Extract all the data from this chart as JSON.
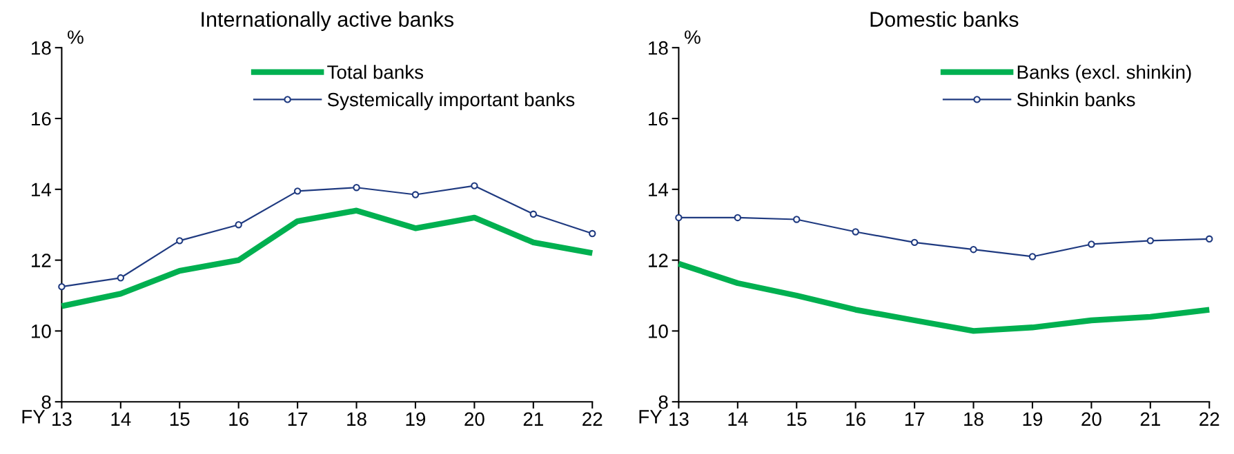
{
  "chart_data": [
    {
      "type": "line",
      "title": "Internationally active banks",
      "xlabel": "FY",
      "ylabel": "%",
      "categories": [
        "13",
        "14",
        "15",
        "16",
        "17",
        "18",
        "19",
        "20",
        "21",
        "22"
      ],
      "ylim": [
        8,
        18
      ],
      "yticks": [
        8,
        10,
        12,
        14,
        16,
        18
      ],
      "grid": false,
      "legend": "top right",
      "series": [
        {
          "name": "Total banks",
          "color": "#00b050",
          "marker": "none",
          "values": [
            10.7,
            11.05,
            11.7,
            12.0,
            13.1,
            13.4,
            12.9,
            13.2,
            12.5,
            12.2
          ]
        },
        {
          "name": "Systemically important banks",
          "color": "#1f3a80",
          "marker": "circle",
          "values": [
            11.25,
            11.5,
            12.55,
            13.0,
            13.95,
            14.05,
            13.85,
            14.1,
            13.3,
            12.75
          ]
        }
      ]
    },
    {
      "type": "line",
      "title": "Domestic banks",
      "xlabel": "FY",
      "ylabel": "%",
      "categories": [
        "13",
        "14",
        "15",
        "16",
        "17",
        "18",
        "19",
        "20",
        "21",
        "22"
      ],
      "ylim": [
        8,
        18
      ],
      "yticks": [
        8,
        10,
        12,
        14,
        16,
        18
      ],
      "grid": false,
      "legend": "top right",
      "series": [
        {
          "name": "Banks (excl. shinkin)",
          "color": "#00b050",
          "marker": "none",
          "values": [
            11.9,
            11.35,
            11.0,
            10.6,
            10.3,
            10.0,
            10.1,
            10.3,
            10.4,
            10.6
          ]
        },
        {
          "name": "Shinkin banks",
          "color": "#1f3a80",
          "marker": "circle",
          "values": [
            13.2,
            13.2,
            13.15,
            12.8,
            12.5,
            12.3,
            12.1,
            12.45,
            12.55,
            12.6
          ]
        }
      ]
    }
  ]
}
